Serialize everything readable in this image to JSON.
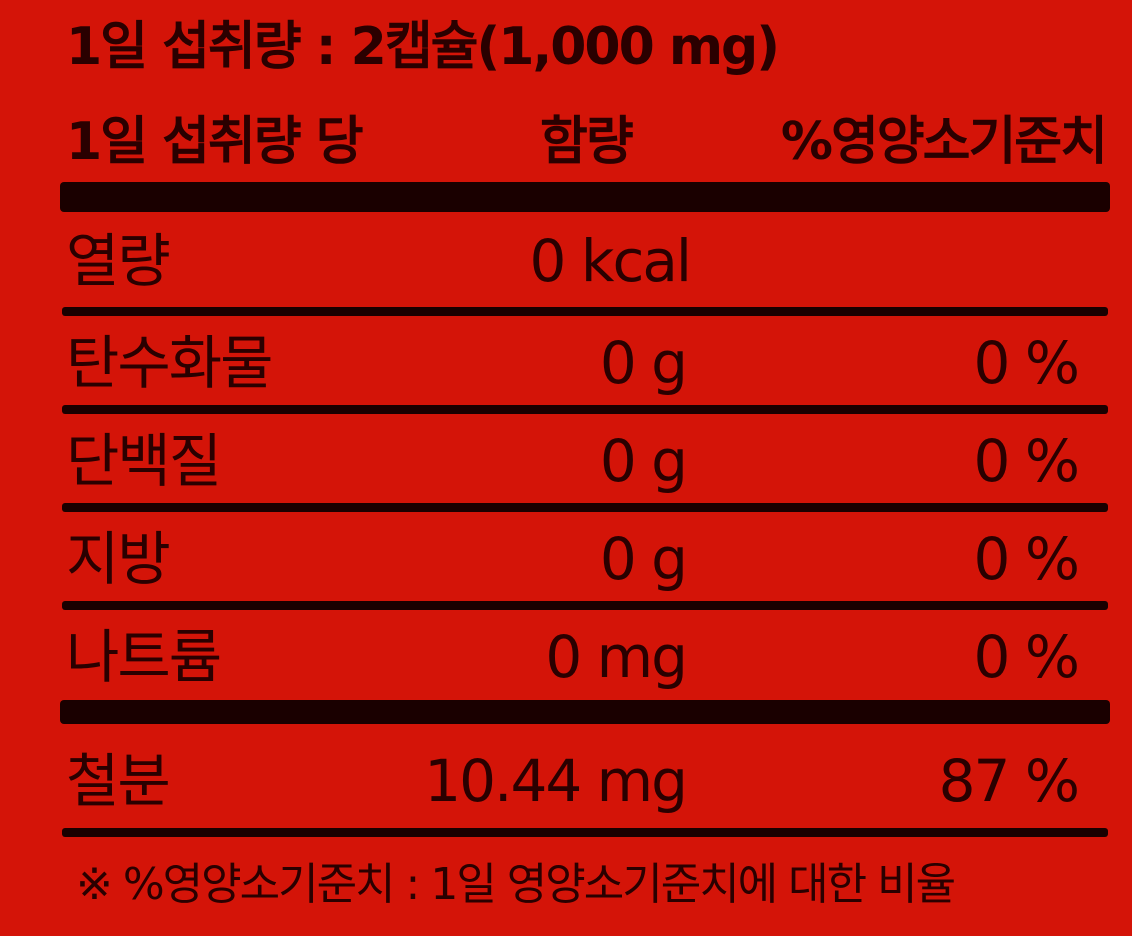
{
  "serving": {
    "text": "1일 섭취량 : 2캡슐(1,000 mg)"
  },
  "header": {
    "per_serving": "1일 섭취량 당",
    "amount": "함량",
    "daily_value": "%영양소기준치"
  },
  "nutrients": [
    {
      "name": "열량",
      "amount": "0 kcal",
      "percent": ""
    },
    {
      "name": "탄수화물",
      "amount": "0 g",
      "percent": "0 %"
    },
    {
      "name": "단백질",
      "amount": "0 g",
      "percent": "0 %"
    },
    {
      "name": "지방",
      "amount": "0 g",
      "percent": "0 %"
    },
    {
      "name": "나트륨",
      "amount": "0 mg",
      "percent": "0 %"
    },
    {
      "name": "철분",
      "amount": "10.44 mg",
      "percent": "87 %"
    }
  ],
  "footnote": "※ %영양소기준치 : 1일 영양소기준치에 대한 비율",
  "colors": {
    "background": "#d41408",
    "text": "#2a0000",
    "rules": "#1a0000"
  }
}
